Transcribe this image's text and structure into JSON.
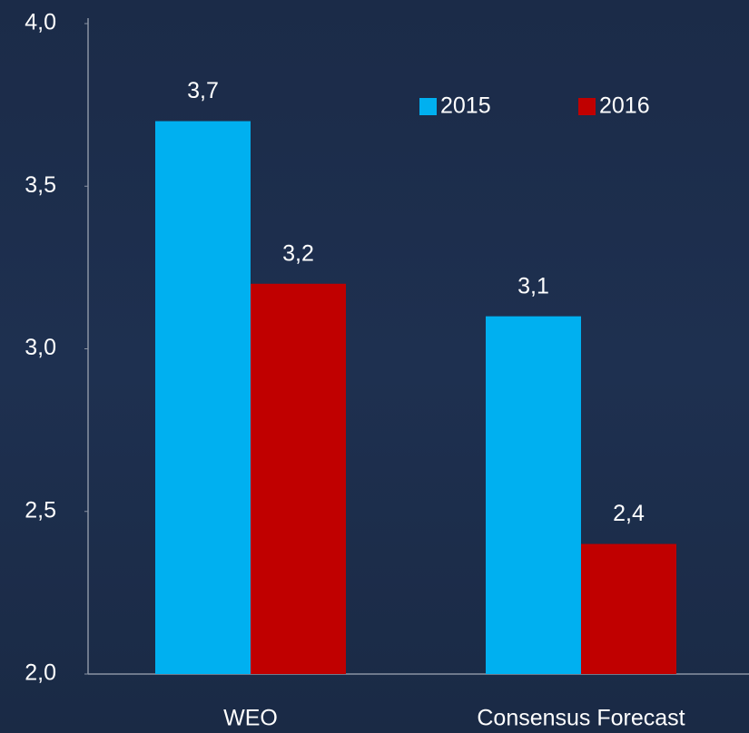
{
  "chart_data": {
    "type": "bar",
    "categories": [
      "WEO",
      "Consensus Forecast"
    ],
    "series": [
      {
        "name": "2015",
        "color": "#00b0f0",
        "values": [
          3.7,
          3.1
        ],
        "value_labels": [
          "3,7",
          "3,1"
        ]
      },
      {
        "name": "2016",
        "color": "#c00000",
        "values": [
          3.2,
          2.4
        ],
        "value_labels": [
          "3,2",
          "2,4"
        ]
      }
    ],
    "ylim": [
      2,
      4
    ],
    "yticks": [
      {
        "value": 2,
        "label": "2,0"
      },
      {
        "value": 2.5,
        "label": "2,5"
      },
      {
        "value": 3,
        "label": "3,0"
      },
      {
        "value": 3.5,
        "label": "3,5"
      },
      {
        "value": 4,
        "label": "4,0"
      }
    ],
    "legend": "top-right"
  }
}
